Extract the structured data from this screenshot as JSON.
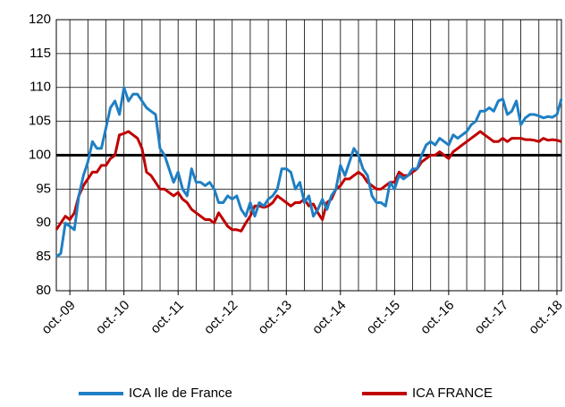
{
  "chart_data": {
    "type": "line",
    "categories": [
      null,
      null,
      null,
      "oct.-09",
      null,
      null,
      null,
      null,
      null,
      null,
      null,
      null,
      null,
      null,
      null,
      "oct.-10",
      null,
      null,
      null,
      null,
      null,
      null,
      null,
      null,
      null,
      null,
      null,
      "oct.-11",
      null,
      null,
      null,
      null,
      null,
      null,
      null,
      null,
      null,
      null,
      null,
      "oct.-12",
      null,
      null,
      null,
      null,
      null,
      null,
      null,
      null,
      null,
      null,
      null,
      "oct.-13",
      null,
      null,
      null,
      null,
      null,
      null,
      null,
      null,
      null,
      null,
      null,
      "oct.-14",
      null,
      null,
      null,
      null,
      null,
      null,
      null,
      null,
      null,
      null,
      null,
      "oct.-15",
      null,
      null,
      null,
      null,
      null,
      null,
      null,
      null,
      null,
      null,
      null,
      "oct.-16",
      null,
      null,
      null,
      null,
      null,
      null,
      null,
      null,
      null,
      null,
      null,
      "oct.-17",
      null,
      null,
      null,
      null,
      null,
      null,
      null,
      null,
      null,
      null,
      null,
      "oct.-18",
      null
    ],
    "series": [
      {
        "name": "ICA Ile de France",
        "color": "#1f7fc4",
        "values": [
          85,
          85.5,
          90,
          89.5,
          89,
          94,
          97,
          99,
          102,
          101,
          101,
          104,
          107,
          108,
          106,
          110,
          108,
          109,
          109,
          108,
          107,
          106.5,
          106,
          101,
          100,
          98,
          96,
          97.5,
          95,
          94,
          98,
          96,
          96,
          95.5,
          96,
          95,
          93,
          93,
          94,
          93.5,
          94,
          92,
          91,
          93,
          91,
          93,
          92.5,
          93.5,
          94,
          95,
          98,
          98,
          97.5,
          95,
          96,
          93,
          94,
          91,
          92,
          93.5,
          92,
          94,
          95,
          98.5,
          97,
          99,
          101,
          100,
          98,
          97,
          94,
          93,
          93,
          92.5,
          96,
          95,
          97,
          96.5,
          97,
          98,
          98,
          100,
          101.5,
          102,
          101.5,
          102.5,
          102,
          101.5,
          103,
          102.5,
          103,
          103.5,
          104.5,
          105,
          106.5,
          106.5,
          107,
          106.5,
          108,
          108.3,
          106,
          106.5,
          108,
          104.5,
          105.5,
          106,
          106,
          105.8,
          105.5,
          105.7,
          105.6,
          106,
          108.3
        ]
      },
      {
        "name": "ICA FRANCE",
        "color": "#c00000",
        "values": [
          89,
          90,
          91,
          90.5,
          91.5,
          94,
          95.5,
          96.5,
          97.5,
          97.5,
          98.5,
          98.5,
          99.5,
          100,
          103,
          103.2,
          103.5,
          103,
          102.5,
          101,
          97.5,
          97,
          96,
          95,
          95,
          94.5,
          94,
          94.5,
          93.5,
          93,
          92,
          91.5,
          91,
          90.5,
          90.5,
          90,
          91.5,
          90.5,
          89.5,
          89,
          89,
          88.8,
          90,
          91,
          92.5,
          92.5,
          92.3,
          92.5,
          93,
          94,
          93.5,
          93,
          92.5,
          93,
          93,
          93.5,
          92.5,
          92.8,
          91.5,
          90.5,
          93,
          93.5,
          95,
          95.5,
          96.5,
          96.5,
          97,
          97.5,
          97,
          96,
          95.5,
          95,
          95,
          95.5,
          96,
          96,
          97.5,
          97,
          97,
          97.5,
          98,
          99,
          99.5,
          100,
          100,
          100.5,
          100,
          99.5,
          100.5,
          101,
          101.5,
          102,
          102.5,
          103,
          103.5,
          103,
          102.5,
          102,
          102,
          102.5,
          102,
          102.5,
          102.5,
          102.5,
          102.3,
          102.3,
          102.2,
          102,
          102.5,
          102.2,
          102.3,
          102.2,
          102
        ]
      }
    ],
    "ylim": [
      80,
      120
    ],
    "yticks": [
      80,
      85,
      90,
      95,
      100,
      105,
      110,
      115,
      120
    ],
    "reference_line": 100,
    "grid": true,
    "legend": "bottom"
  }
}
